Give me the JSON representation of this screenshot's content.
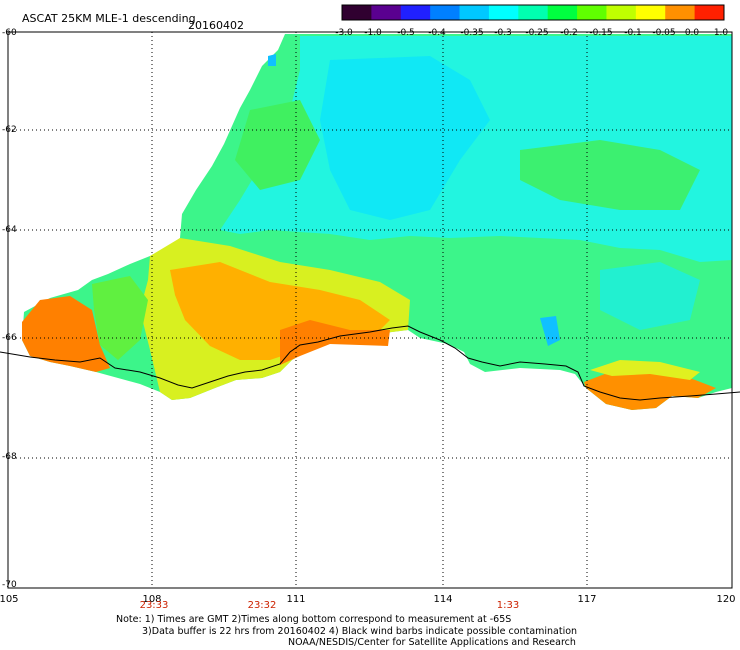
{
  "title": {
    "main": "ASCAT 25KM MLE-1 descending",
    "date": "20160402"
  },
  "colorbar": {
    "labels": [
      "-3.0",
      "-1.0",
      "-0.5",
      "-0.4",
      "-0.35",
      "-0.3",
      "-0.25",
      "-0.2",
      "-0.15",
      "-0.1",
      "-0.05",
      "0.0",
      "1.0"
    ],
    "colors": [
      "#300030",
      "#5a0090",
      "#2020ff",
      "#0080ff",
      "#00c8ff",
      "#00ffff",
      "#00ffb0",
      "#00ff40",
      "#60ff00",
      "#c0ff00",
      "#ffff00",
      "#ff9000",
      "#ff2000"
    ]
  },
  "axes": {
    "lat_labels": [
      "-60",
      "-62",
      "-64",
      "-66",
      "-68",
      "-70"
    ],
    "lon_labels": [
      "105",
      "108",
      "111",
      "114",
      "117",
      "120"
    ]
  },
  "times": [
    "23:33",
    "23:32",
    "1:33"
  ],
  "notes": {
    "line1": "Note: 1) Times are GMT 2)Times along bottom correspond to measurement at -65S",
    "line2": "3)Data buffer is 22 hrs from 20160402 4) Black wind barbs indicate possible contamination",
    "line3": "NOAA/NESDIS/Center for Satellite Applications and Research"
  }
}
